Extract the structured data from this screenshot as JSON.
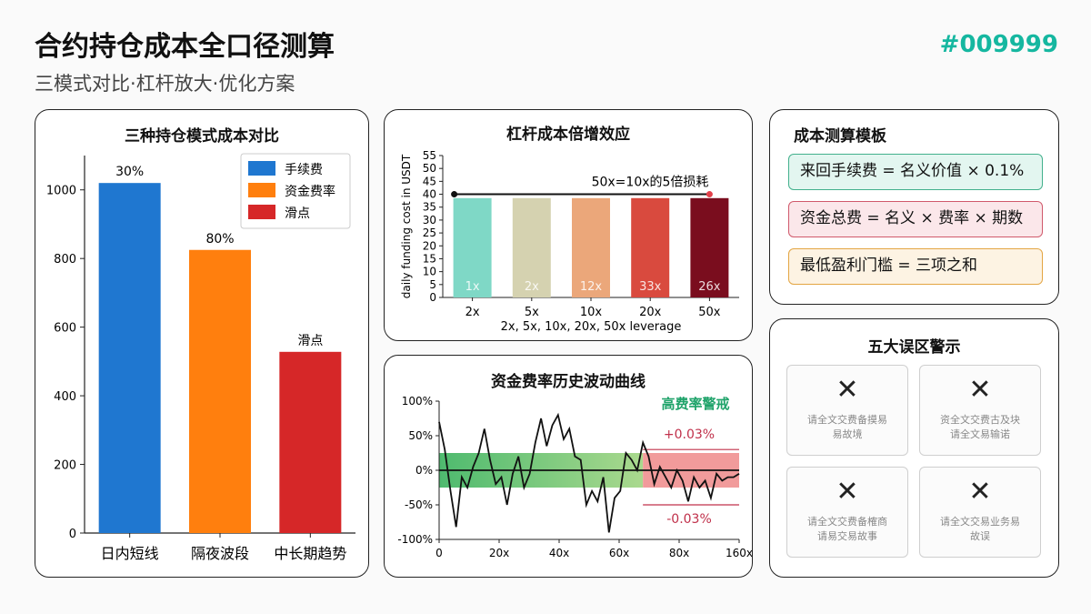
{
  "header": {
    "title": "合约持仓成本全口径测算",
    "subtitle": "三模式对比·杠杆放大·优化方案",
    "tag": "#009999"
  },
  "panels": {
    "mode_title": "三种持仓模式成本对比",
    "leverage_title": "杠杆成本倍增效应",
    "funding_title": "资金费率历史波动曲线",
    "template_title": "成本测算模板",
    "warning_title": "五大误区警示"
  },
  "template": [
    {
      "text": "来回手续费 = 名义价值 × 0.1%",
      "bg": "#e3f6f0",
      "border": "#42b08c"
    },
    {
      "text": "资金总费 = 名义 × 费率 × 期数",
      "bg": "#fbe7ea",
      "border": "#d0596b"
    },
    {
      "text": "最低盈利门槛 = 三项之和",
      "bg": "#fdf3e3",
      "border": "#e3a542"
    }
  ],
  "warnings": [
    {
      "icon": "close-icon",
      "line1": "请全文交费备摸易",
      "line2": "易故境"
    },
    {
      "icon": "close-icon",
      "line1": "资全文交费古及块",
      "line2": "请全文易输诺"
    },
    {
      "icon": "close-icon",
      "line1": "请全文交费备榷商",
      "line2": "请易交易故事"
    },
    {
      "icon": "close-icon",
      "line1": "请全文交易业务易",
      "line2": "故误"
    }
  ],
  "chart_data": [
    {
      "type": "bar",
      "title": "三种持仓模式成本对比",
      "categories": [
        "日内短线",
        "隔夜波段",
        "中长期趋势"
      ],
      "values": [
        1020,
        825,
        528
      ],
      "bar_colors": [
        "#1f77d0",
        "#ff7f0e",
        "#d62728"
      ],
      "data_labels": [
        "30%",
        "80%",
        "滑点"
      ],
      "legend": [
        {
          "label": "手续费",
          "color": "#1f77d0"
        },
        {
          "label": "资金费率",
          "color": "#ff7f0e"
        },
        {
          "label": "滑点",
          "color": "#d62728"
        }
      ],
      "legend_position": "top-right",
      "ylim": [
        0,
        1100
      ],
      "yticks": [
        0,
        200,
        400,
        600,
        800,
        1000
      ]
    },
    {
      "type": "bar",
      "title": "杠杆成本倍增效应",
      "categories": [
        "2x",
        "5x",
        "10x",
        "20x",
        "50x"
      ],
      "values": [
        38.5,
        38.5,
        38.5,
        38.5,
        38.5
      ],
      "bar_colors": [
        "#7fd8c6",
        "#d5d2b0",
        "#eba77a",
        "#d94a3e",
        "#7a0d1e"
      ],
      "inner_labels": [
        "1x",
        "2x",
        "12x",
        "33x",
        "26x"
      ],
      "ylabel": "daily funding cost in USDT",
      "xlabel": "2x, 5x, 10x, 20x, 50x leverage",
      "ylim": [
        0,
        55
      ],
      "yticks": [
        0,
        5,
        10,
        15,
        20,
        25,
        30,
        35,
        40,
        45,
        50,
        55
      ],
      "annotation": "50x=10x的5倍损耗",
      "annotation_y": 40
    },
    {
      "type": "line",
      "title": "资金费率历史波动曲线",
      "x": [
        0,
        2,
        4,
        6,
        8,
        10,
        12,
        14,
        16,
        18,
        20,
        22,
        24,
        26,
        28,
        30,
        32,
        34,
        36,
        38,
        40,
        42,
        44,
        46,
        48,
        50,
        52,
        54,
        56,
        58,
        60,
        62,
        64,
        66,
        68,
        70,
        72,
        74,
        76,
        78,
        80,
        82,
        84,
        86,
        88,
        90,
        92,
        94,
        96,
        98,
        100,
        102,
        104,
        106
      ],
      "y": [
        70,
        30,
        -30,
        -82,
        -10,
        -25,
        5,
        25,
        60,
        15,
        -20,
        -10,
        -50,
        -5,
        20,
        -25,
        -5,
        40,
        75,
        35,
        65,
        80,
        45,
        60,
        20,
        15,
        -50,
        -30,
        -45,
        -10,
        -90,
        -40,
        -30,
        25,
        15,
        0,
        40,
        20,
        -20,
        5,
        -10,
        -25,
        0,
        -15,
        -45,
        -10,
        -25,
        -15,
        -40,
        -5,
        -15,
        -10,
        -10,
        -5
      ],
      "xticks": [
        0,
        20,
        40,
        60,
        80,
        160
      ],
      "xtick_labels": [
        "0",
        "20x",
        "40x",
        "60x",
        "80x",
        "160x"
      ],
      "yticks": [
        -100,
        -50,
        0,
        50,
        100
      ],
      "ytick_labels": [
        "-100%",
        "-50%",
        "0%",
        "50%",
        "100%"
      ],
      "ylim": [
        -100,
        100
      ],
      "high_label": "高费率警戒",
      "upper_label": "+0.03%",
      "lower_label": "-0.03%",
      "upper_level": 30,
      "lower_level": -50
    }
  ]
}
